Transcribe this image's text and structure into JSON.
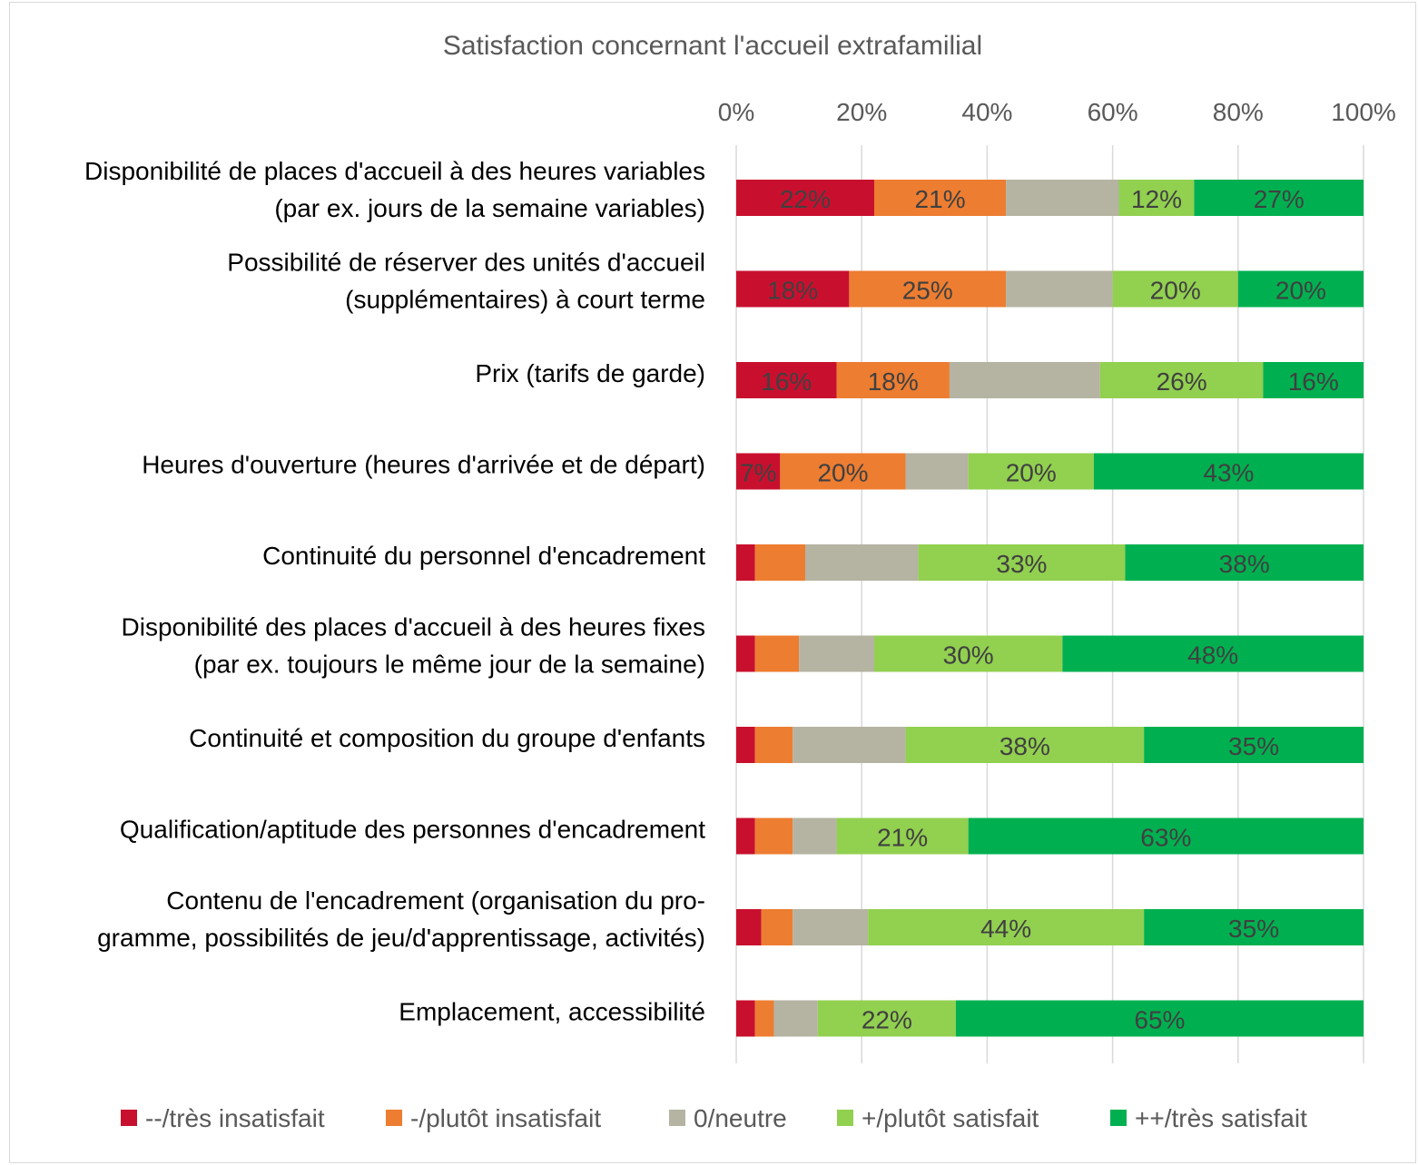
{
  "chart_data": {
    "type": "bar",
    "orientation": "horizontal",
    "stacked": "percent",
    "title": "Satisfaction concernant l'accueil extrafamilial",
    "xlim": [
      0,
      100
    ],
    "x_ticks": [
      "0%",
      "20%",
      "40%",
      "60%",
      "80%",
      "100%"
    ],
    "grid": true,
    "legend_position": "bottom",
    "categories": [
      [
        "Disponibilité de places d'accueil à des heures variables",
        "(par ex. jours de la semaine variables)"
      ],
      [
        "Possibilité de réserver des unités d'accueil",
        "(supplémentaires) à court terme"
      ],
      [
        "Prix (tarifs de garde)"
      ],
      [
        "Heures d'ouverture (heures d'arrivée et de départ)"
      ],
      [
        "Continuité du personnel d'encadrement"
      ],
      [
        "Disponibilité des places d'accueil à des heures fixes",
        "(par ex. toujours le même jour de la semaine)"
      ],
      [
        "Continuité et composition du groupe d'enfants"
      ],
      [
        "Qualification/aptitude des personnes d'encadrement"
      ],
      [
        "Contenu de l'encadrement (organisation du pro-",
        "gramme, possibilités de jeu/d'apprentissage, activités)"
      ],
      [
        "Emplacement, accessibilité"
      ]
    ],
    "series": [
      {
        "name": "--/très insatisfait",
        "color": "#C8102E",
        "values": [
          22,
          18,
          16,
          7,
          3,
          3,
          3,
          3,
          4,
          3
        ],
        "labels": [
          "22%",
          "18%",
          "16%",
          "7%",
          null,
          null,
          null,
          null,
          null,
          null
        ]
      },
      {
        "name": "-/plutôt insatisfait",
        "color": "#ED7D31",
        "values": [
          21,
          25,
          18,
          20,
          8,
          7,
          6,
          6,
          5,
          3
        ],
        "labels": [
          "21%",
          "25%",
          "18%",
          "20%",
          null,
          null,
          null,
          null,
          null,
          null
        ]
      },
      {
        "name": "0/neutre",
        "color": "#B5B3A2",
        "values": [
          18,
          17,
          24,
          10,
          18,
          12,
          18,
          7,
          12,
          7
        ],
        "labels": [
          null,
          null,
          null,
          null,
          null,
          null,
          null,
          null,
          null,
          null
        ]
      },
      {
        "name": "+/plutôt satisfait",
        "color": "#92D050",
        "values": [
          12,
          20,
          26,
          20,
          33,
          30,
          38,
          21,
          44,
          22
        ],
        "labels": [
          "12%",
          "20%",
          "26%",
          "20%",
          "33%",
          "30%",
          "38%",
          "21%",
          "44%",
          "22%"
        ]
      },
      {
        "name": "++/très satisfait",
        "color": "#00B050",
        "values": [
          27,
          20,
          16,
          43,
          38,
          48,
          35,
          63,
          35,
          65
        ],
        "labels": [
          "27%",
          "20%",
          "16%",
          "43%",
          "38%",
          "48%",
          "35%",
          "63%",
          "35%",
          "65%"
        ]
      }
    ]
  }
}
